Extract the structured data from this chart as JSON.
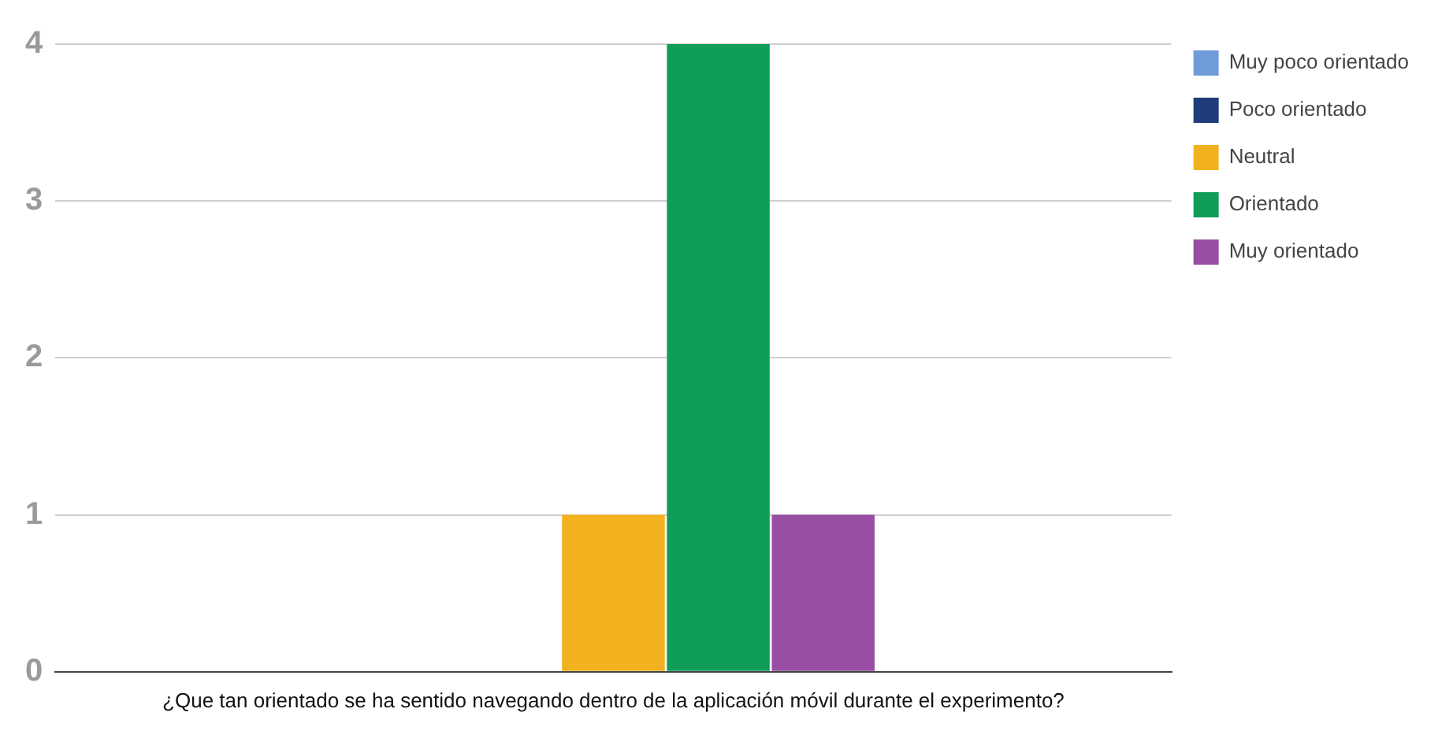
{
  "chart_data": {
    "type": "bar",
    "categories": [
      "¿Que tan orientado se ha sentido navegando dentro de la aplicación móvil durante el experimento?"
    ],
    "series": [
      {
        "name": "Muy poco orientado",
        "color": "#6f9bd8",
        "values": [
          0
        ]
      },
      {
        "name": "Poco orientado",
        "color": "#1f3d7a",
        "values": [
          0
        ]
      },
      {
        "name": "Neutral",
        "color": "#f2b21f",
        "values": [
          1
        ]
      },
      {
        "name": "Orientado",
        "color": "#0f9d58",
        "values": [
          4
        ]
      },
      {
        "name": "Muy orientado",
        "color": "#984ea3",
        "values": [
          1
        ]
      }
    ],
    "ylim": [
      0,
      4
    ],
    "yticks": [
      0,
      1,
      2,
      3,
      4
    ],
    "grid": "y",
    "legend": "top right"
  }
}
